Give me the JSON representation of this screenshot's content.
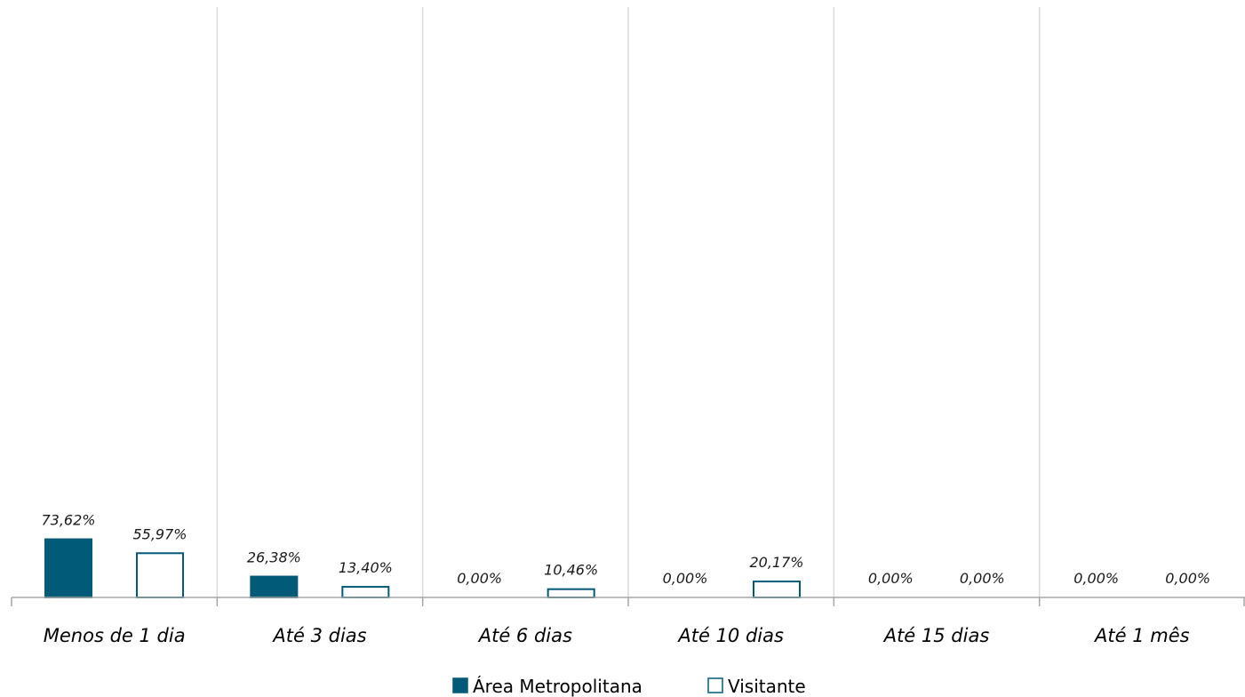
{
  "chart_data": {
    "type": "bar",
    "categories": [
      "Menos de 1 dia",
      "Até 3 dias",
      "Até 6 dias",
      "Até 10 dias",
      "Até 15 dias",
      "Até 1 mês"
    ],
    "series": [
      {
        "name": "Área Metropolitana",
        "values": [
          73.62,
          26.38,
          0.0,
          0.0,
          0.0,
          0.0
        ],
        "labels": [
          "73,62%",
          "26,38%",
          "0,00%",
          "0,00%",
          "0,00%",
          "0,00%"
        ],
        "fill": "#005a78",
        "stroke": "#005a78"
      },
      {
        "name": "Visitante",
        "values": [
          55.97,
          13.4,
          10.46,
          20.17,
          0.0,
          0.0
        ],
        "labels": [
          "55,97%",
          "13,40%",
          "10,46%",
          "20,17%",
          "0,00%",
          "0,00%"
        ],
        "fill": "#ffffff",
        "stroke": "#005a78"
      }
    ],
    "ylim": [
      0,
      80
    ],
    "grid": "vertical category separators",
    "legend": "bottom-center",
    "colors": {
      "accent": "#005a78",
      "grid": "#d9d9d9",
      "axis": "#a6a6a6"
    }
  }
}
